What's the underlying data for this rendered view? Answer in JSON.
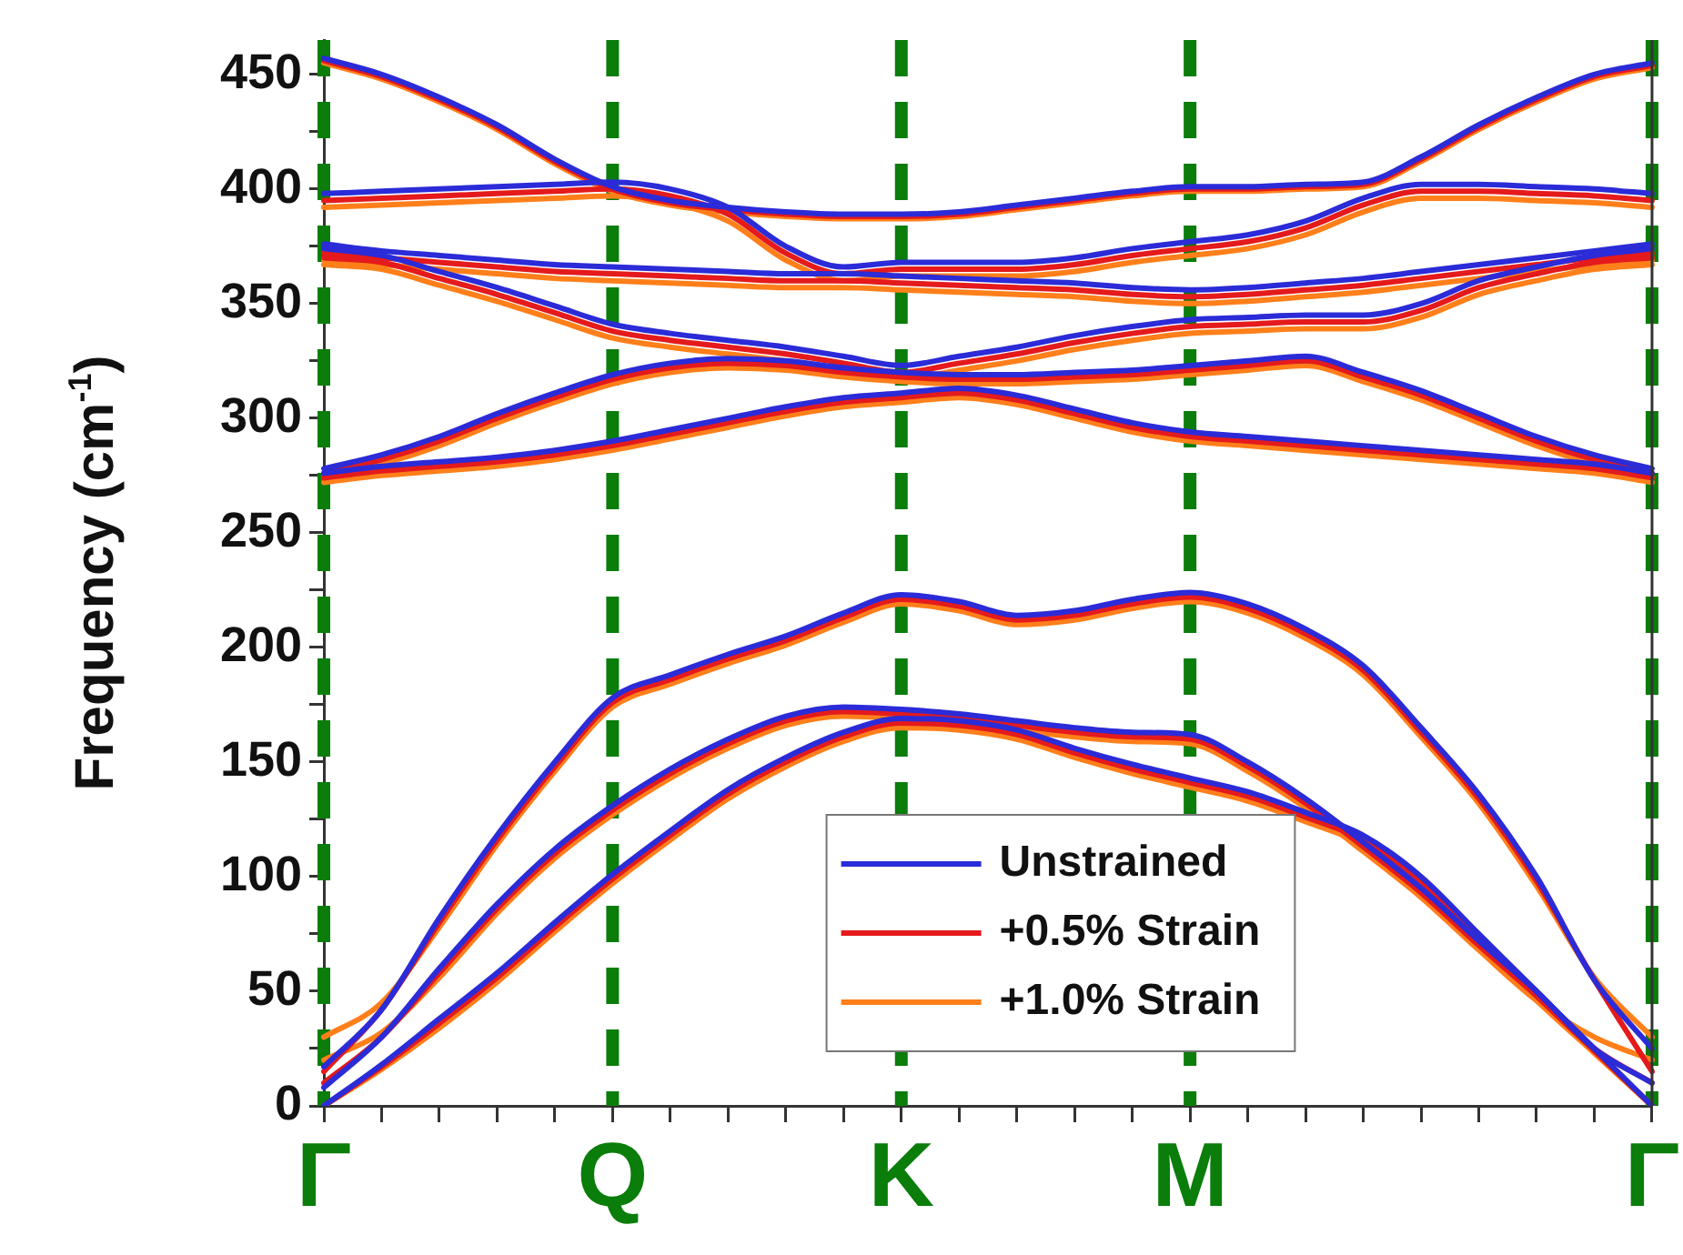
{
  "chart_data": {
    "type": "line",
    "ylabel": "Frequency (cm$^{-1}$)",
    "categories": [
      "Γ",
      null,
      null,
      null,
      null,
      "Q",
      null,
      null,
      null,
      null,
      "K",
      null,
      null,
      null,
      null,
      "M",
      null,
      null,
      null,
      null,
      null,
      null,
      null,
      "Γ"
    ],
    "ylim": [
      0,
      465
    ],
    "yticks": [
      0,
      {
        "value": 25,
        "label": null
      },
      50,
      {
        "value": 75,
        "label": null
      },
      100,
      {
        "value": 125,
        "label": null
      },
      150,
      {
        "value": 175,
        "label": null
      },
      200,
      {
        "value": 225,
        "label": null
      },
      250,
      {
        "value": 275,
        "label": null
      },
      300,
      {
        "value": 325,
        "label": null
      },
      350,
      {
        "value": 375,
        "label": null
      },
      400,
      {
        "value": 425,
        "label": null
      },
      450
    ],
    "grid": "x",
    "legend": "bottom",
    "marker": "none",
    "line_style": "solid",
    "series": [
      {
        "name": "Unstrained",
        "color": "#2b2bd8",
        "values": [
          457,
          450,
          440,
          428,
          413,
          401,
          395,
          392,
          390,
          389,
          389,
          390,
          393,
          396,
          399,
          401,
          401,
          402,
          403,
          414,
          428,
          440,
          450,
          455
        ]
      },
      {
        "color": "#2b2bd8",
        "values": [
          398,
          399,
          400,
          401,
          402,
          403,
          400,
          392,
          375,
          366,
          368,
          368,
          368,
          370,
          374,
          377,
          380,
          386,
          396,
          402,
          402,
          401,
          400,
          398
        ]
      },
      {
        "color": "#2b2bd8",
        "values": [
          376,
          373,
          371,
          369,
          367,
          366,
          365,
          364,
          363,
          363,
          362,
          361,
          360,
          359,
          357,
          356,
          357,
          359,
          361,
          364,
          367,
          370,
          373,
          376
        ]
      },
      {
        "color": "#2b2bd8",
        "values": [
          374,
          371,
          364,
          357,
          349,
          341,
          337,
          334,
          331,
          327,
          323,
          327,
          331,
          336,
          340,
          343,
          344,
          345,
          345,
          350,
          360,
          366,
          371,
          374
        ]
      },
      {
        "color": "#2b2bd8",
        "values": [
          278,
          284,
          292,
          302,
          311,
          319,
          324,
          326,
          325,
          322,
          320,
          319,
          319,
          320,
          321,
          323,
          325,
          327,
          320,
          312,
          302,
          292,
          284,
          278
        ]
      },
      {
        "color": "#2b2bd8",
        "values": [
          276,
          279,
          281,
          283,
          286,
          290,
          295,
          300,
          305,
          309,
          311,
          313,
          310,
          304,
          298,
          294,
          292,
          290,
          288,
          286,
          284,
          282,
          280,
          276
        ]
      },
      {
        "color": "#2b2bd8",
        "values": [
          17,
          42,
          82,
          118,
          150,
          178,
          188,
          197,
          205,
          215,
          223,
          220,
          214,
          216,
          221,
          224,
          219,
          208,
          192,
          165,
          136,
          100,
          55,
          25
        ]
      },
      {
        "color": "#2b2bd8",
        "values": [
          8,
          30,
          60,
          88,
          112,
          131,
          147,
          160,
          170,
          174,
          173,
          171,
          168,
          165,
          163,
          162,
          150,
          134,
          115,
          95,
          72,
          50,
          25,
          10
        ]
      },
      {
        "color": "#2b2bd8",
        "values": [
          0,
          18,
          38,
          58,
          80,
          101,
          120,
          138,
          152,
          163,
          169,
          168,
          164,
          156,
          149,
          143,
          137,
          128,
          118,
          100,
          75,
          50,
          25,
          0
        ]
      },
      {
        "name": "+0.5% Strain",
        "color": "#e41a1c",
        "values": [
          456,
          449,
          439,
          427,
          412,
          400,
          394,
          391,
          389,
          388,
          388,
          389,
          392,
          395,
          398,
          400,
          400,
          401,
          402,
          413,
          427,
          439,
          449,
          454
        ]
      },
      {
        "color": "#e41a1c",
        "values": [
          395,
          396,
          397,
          398,
          399,
          400,
          397,
          389,
          372,
          363,
          365,
          365,
          365,
          367,
          371,
          374,
          377,
          383,
          393,
          399,
          399,
          398,
          397,
          395
        ]
      },
      {
        "color": "#e41a1c",
        "values": [
          372,
          370,
          368,
          366,
          364,
          363,
          362,
          361,
          360,
          360,
          359,
          358,
          357,
          356,
          354,
          353,
          354,
          356,
          358,
          361,
          364,
          367,
          370,
          372
        ]
      },
      {
        "color": "#e41a1c",
        "values": [
          370,
          368,
          361,
          354,
          346,
          338,
          334,
          331,
          328,
          324,
          320,
          324,
          328,
          333,
          337,
          340,
          341,
          342,
          342,
          347,
          357,
          363,
          368,
          370
        ]
      },
      {
        "color": "#e41a1c",
        "values": [
          276,
          282,
          290,
          300,
          309,
          317,
          322,
          324,
          323,
          320,
          318,
          317,
          317,
          318,
          319,
          321,
          323,
          325,
          318,
          310,
          300,
          290,
          282,
          276
        ]
      },
      {
        "color": "#e41a1c",
        "values": [
          274,
          277,
          279,
          281,
          284,
          288,
          293,
          298,
          303,
          307,
          309,
          311,
          308,
          302,
          296,
          292,
          290,
          288,
          286,
          284,
          282,
          280,
          278,
          274
        ]
      },
      {
        "color": "#e41a1c",
        "values": [
          15,
          42,
          80,
          116,
          148,
          176,
          186,
          195,
          203,
          213,
          221,
          218,
          212,
          214,
          219,
          222,
          217,
          206,
          190,
          163,
          134,
          98,
          55,
          15
        ]
      },
      {
        "color": "#e41a1c",
        "values": [
          10,
          30,
          58,
          86,
          110,
          129,
          145,
          158,
          168,
          172,
          171,
          169,
          166,
          163,
          161,
          160,
          148,
          132,
          113,
          93,
          70,
          48,
          25,
          10
        ]
      },
      {
        "color": "#e41a1c",
        "values": [
          0,
          17,
          36,
          56,
          78,
          99,
          118,
          136,
          150,
          161,
          167,
          166,
          162,
          154,
          147,
          141,
          135,
          126,
          116,
          98,
          73,
          48,
          24,
          0
        ]
      },
      {
        "name": "+1.0% Strain",
        "color": "#ff7f1a",
        "values": [
          455,
          448,
          438,
          426,
          411,
          399,
          393,
          390,
          388,
          387,
          387,
          388,
          391,
          394,
          397,
          399,
          399,
          400,
          401,
          412,
          426,
          438,
          448,
          453
        ]
      },
      {
        "color": "#ff7f1a",
        "values": [
          392,
          393,
          394,
          395,
          396,
          397,
          394,
          386,
          369,
          360,
          362,
          362,
          362,
          364,
          368,
          371,
          374,
          380,
          390,
          396,
          396,
          395,
          394,
          392
        ]
      },
      {
        "color": "#ff7f1a",
        "values": [
          369,
          367,
          365,
          363,
          361,
          360,
          359,
          358,
          357,
          357,
          356,
          355,
          354,
          353,
          351,
          350,
          351,
          353,
          355,
          358,
          361,
          364,
          367,
          369
        ]
      },
      {
        "color": "#ff7f1a",
        "values": [
          367,
          365,
          358,
          351,
          343,
          335,
          331,
          328,
          325,
          321,
          317,
          321,
          325,
          330,
          334,
          337,
          338,
          339,
          339,
          344,
          354,
          360,
          365,
          367
        ]
      },
      {
        "color": "#ff7f1a",
        "values": [
          274,
          280,
          288,
          298,
          307,
          315,
          320,
          322,
          321,
          318,
          316,
          315,
          315,
          316,
          317,
          319,
          321,
          323,
          316,
          308,
          298,
          288,
          280,
          274
        ]
      },
      {
        "color": "#ff7f1a",
        "values": [
          272,
          275,
          277,
          279,
          282,
          286,
          291,
          296,
          301,
          305,
          307,
          309,
          306,
          300,
          294,
          290,
          288,
          286,
          284,
          282,
          280,
          278,
          276,
          272
        ]
      },
      {
        "color": "#ff7f1a",
        "values": [
          30,
          45,
          78,
          114,
          146,
          174,
          184,
          193,
          201,
          211,
          219,
          216,
          210,
          212,
          217,
          220,
          215,
          204,
          188,
          161,
          132,
          96,
          56,
          30
        ]
      },
      {
        "color": "#ff7f1a",
        "values": [
          20,
          32,
          56,
          84,
          108,
          127,
          143,
          156,
          166,
          170,
          169,
          167,
          164,
          161,
          159,
          158,
          146,
          130,
          111,
          91,
          68,
          46,
          30,
          20
        ]
      },
      {
        "color": "#ff7f1a",
        "values": [
          0,
          16,
          34,
          54,
          76,
          97,
          116,
          134,
          148,
          159,
          165,
          164,
          160,
          152,
          145,
          139,
          133,
          124,
          114,
          96,
          71,
          46,
          23,
          0
        ]
      }
    ]
  }
}
